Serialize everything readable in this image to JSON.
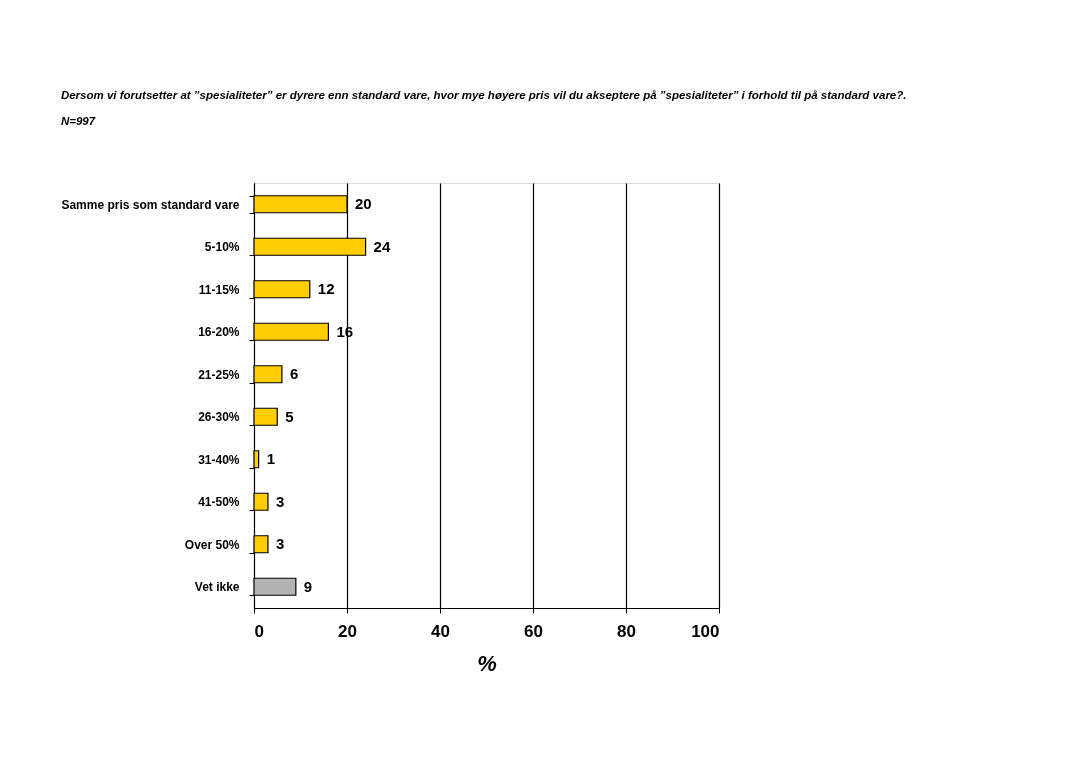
{
  "chart_data": {
    "type": "bar",
    "orientation": "horizontal",
    "title": "Dersom vi forutsetter at ”spesialiteter” er dyrere enn standard vare, hvor mye høyere pris vil du akseptere på ”spesialiteter” i forhold til på standard vare?.",
    "subtitle": "N=997",
    "xlabel": "%",
    "categories": [
      "Samme pris som standard vare",
      "5-10%",
      "11-15%",
      "16-20%",
      "21-25%",
      "26-30%",
      "31-40%",
      "41-50%",
      "Over 50%",
      "Vet ikke"
    ],
    "values": [
      20,
      24,
      12,
      16,
      6,
      5,
      1,
      3,
      3,
      9
    ],
    "colors": [
      "#ffcc00",
      "#ffcc00",
      "#ffcc00",
      "#ffcc00",
      "#ffcc00",
      "#ffcc00",
      "#ffcc00",
      "#ffcc00",
      "#ffcc00",
      "#b3b3b3"
    ],
    "xlim": [
      0,
      100
    ],
    "xticks": [
      0,
      20,
      40,
      60,
      80,
      100
    ],
    "grid": "x",
    "data_labels": true
  }
}
